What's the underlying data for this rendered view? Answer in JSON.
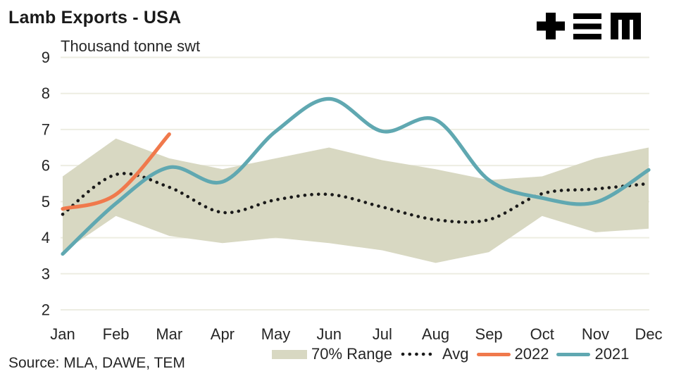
{
  "title": "Lamb Exports - USA",
  "subtitle": "Thousand tonne swt",
  "source": "Source: MLA, DAWE, TEM",
  "logo": {
    "label": "TEM logo",
    "color": "#000000"
  },
  "legend": {
    "items": [
      {
        "label": "70% Range"
      },
      {
        "label": "Avg"
      },
      {
        "label": "2022"
      },
      {
        "label": "2021"
      }
    ]
  },
  "colors": {
    "background": "#FFFFFF",
    "title_text": "#1A1A1A",
    "text": "#262626",
    "gridline": "#EDEDE2",
    "band": "#D8D8C2",
    "avg": "#1A1A1A",
    "line_2022": "#F0794C",
    "line_2021": "#60A8B1",
    "logo": "#000000"
  },
  "chart_data": {
    "type": "line",
    "title": "Lamb Exports - USA",
    "ylabel": "Thousand tonne swt",
    "xlabel": "",
    "categories": [
      "Jan",
      "Feb",
      "Mar",
      "Apr",
      "May",
      "Jun",
      "Jul",
      "Aug",
      "Sep",
      "Oct",
      "Nov",
      "Dec"
    ],
    "ylim": [
      2,
      9
    ],
    "yticks": [
      2,
      3,
      4,
      5,
      6,
      7,
      8,
      9
    ],
    "grid": true,
    "legend_position": "bottom",
    "series": [
      {
        "name": "70% Range",
        "type": "band",
        "color": "#D8D8C2",
        "upper": [
          5.7,
          6.75,
          6.2,
          5.9,
          6.2,
          6.5,
          6.15,
          5.9,
          5.6,
          5.7,
          6.2,
          6.5
        ],
        "lower": [
          3.6,
          4.6,
          4.05,
          3.85,
          4.0,
          3.85,
          3.65,
          3.3,
          3.6,
          4.6,
          4.15,
          4.25
        ]
      },
      {
        "name": "Avg",
        "type": "line",
        "style": "dotted",
        "smooth": true,
        "color": "#1A1A1A",
        "values": [
          4.65,
          5.75,
          5.4,
          4.7,
          5.05,
          5.2,
          4.85,
          4.5,
          4.5,
          5.22,
          5.35,
          5.5
        ]
      },
      {
        "name": "2022",
        "type": "line",
        "style": "solid",
        "smooth": true,
        "color": "#F0794C",
        "values": [
          4.8,
          5.2,
          6.87,
          null,
          null,
          null,
          null,
          null,
          null,
          null,
          null,
          null
        ]
      },
      {
        "name": "2021",
        "type": "line",
        "style": "solid",
        "smooth": true,
        "color": "#60A8B1",
        "values": [
          3.55,
          4.95,
          5.95,
          5.55,
          6.95,
          7.85,
          6.95,
          7.27,
          5.6,
          5.1,
          4.98,
          5.88
        ]
      }
    ]
  }
}
